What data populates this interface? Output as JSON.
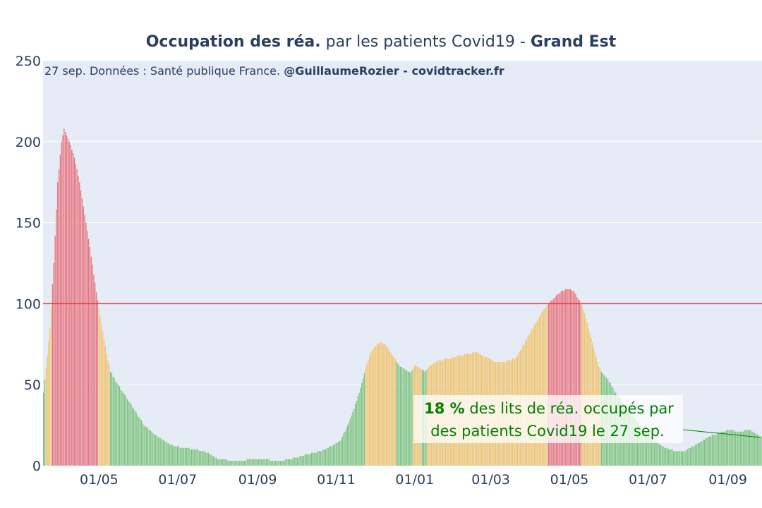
{
  "chart_data": {
    "type": "bar",
    "title": {
      "part1": "Occupation des réa.",
      "part2": " par les patients Covid19 - ",
      "part3": "Grand Est"
    },
    "source_note": {
      "plain": "27 sep. Données : Santé publique France. ",
      "bold": "@GuillaumeRozier - covidtracker.fr"
    },
    "annotation": {
      "value_text": "18  %",
      "line1_rest": " des lits de réa. occupés par",
      "line2": "des patients Covid19 le 27 sep."
    },
    "x_tick_labels": [
      "01/05",
      "01/07",
      "01/09",
      "01/11",
      "01/01",
      "01/03",
      "01/05",
      "01/07",
      "01/09"
    ],
    "y_tick_labels": [
      "0",
      "50",
      "100",
      "150",
      "200",
      "250"
    ],
    "ylim": [
      0,
      250
    ],
    "threshold": 100,
    "color_rules": [
      {
        "min": 100,
        "color": "#e8737d",
        "meaning": ">= 100%"
      },
      {
        "min": 60,
        "color": "#f2c46d",
        "meaning": "60-100%"
      },
      {
        "min": 0,
        "color": "#7dc47d",
        "meaning": "< 60%"
      }
    ],
    "color_overrides": {
      "yellow": [
        [
          267,
          273
        ]
      ],
      "green": [
        [
          274,
          281
        ]
      ]
    },
    "threshold_color": "#e8343c",
    "plot_bg": "#e5ecf6",
    "grid_color": "#ffffff",
    "annotation_color": "#008000",
    "start_date": "2020-03-19",
    "end_date": "2021-09-27",
    "keypoints": [
      [
        "2020-03-19",
        45
      ],
      [
        "2020-03-21",
        60
      ],
      [
        "2020-03-24",
        85
      ],
      [
        "2020-03-27",
        125
      ],
      [
        "2020-03-30",
        175
      ],
      [
        "2020-04-02",
        200
      ],
      [
        "2020-04-04",
        208
      ],
      [
        "2020-04-08",
        200
      ],
      [
        "2020-04-12",
        190
      ],
      [
        "2020-04-16",
        175
      ],
      [
        "2020-04-20",
        155
      ],
      [
        "2020-04-24",
        135
      ],
      [
        "2020-04-27",
        118
      ],
      [
        "2020-04-30",
        102
      ],
      [
        "2020-05-02",
        92
      ],
      [
        "2020-05-05",
        78
      ],
      [
        "2020-05-08",
        65
      ],
      [
        "2020-05-10",
        58
      ],
      [
        "2020-05-14",
        52
      ],
      [
        "2020-05-20",
        45
      ],
      [
        "2020-05-28",
        35
      ],
      [
        "2020-06-05",
        25
      ],
      [
        "2020-06-15",
        18
      ],
      [
        "2020-06-25",
        13
      ],
      [
        "2020-07-05",
        11
      ],
      [
        "2020-07-15",
        10
      ],
      [
        "2020-07-25",
        8
      ],
      [
        "2020-08-01",
        4
      ],
      [
        "2020-08-15",
        3
      ],
      [
        "2020-09-01",
        4
      ],
      [
        "2020-09-20",
        3
      ],
      [
        "2020-10-01",
        5
      ],
      [
        "2020-10-10",
        7
      ],
      [
        "2020-10-20",
        9
      ],
      [
        "2020-10-31",
        13
      ],
      [
        "2020-11-05",
        16
      ],
      [
        "2020-11-10",
        25
      ],
      [
        "2020-11-15",
        35
      ],
      [
        "2020-11-20",
        48
      ],
      [
        "2020-11-24",
        60
      ],
      [
        "2020-11-28",
        70
      ],
      [
        "2020-12-02",
        74
      ],
      [
        "2020-12-06",
        76
      ],
      [
        "2020-12-10",
        74
      ],
      [
        "2020-12-15",
        68
      ],
      [
        "2020-12-20",
        62
      ],
      [
        "2020-12-25",
        59
      ],
      [
        "2020-12-29",
        57
      ],
      [
        "2021-01-01",
        62
      ],
      [
        "2021-01-05",
        60
      ],
      [
        "2021-01-09",
        58
      ],
      [
        "2021-01-13",
        62
      ],
      [
        "2021-01-20",
        65
      ],
      [
        "2021-01-28",
        66
      ],
      [
        "2021-02-05",
        68
      ],
      [
        "2021-02-12",
        69
      ],
      [
        "2021-02-18",
        70
      ],
      [
        "2021-02-25",
        67
      ],
      [
        "2021-03-05",
        64
      ],
      [
        "2021-03-12",
        64
      ],
      [
        "2021-03-20",
        66
      ],
      [
        "2021-03-25",
        72
      ],
      [
        "2021-03-30",
        80
      ],
      [
        "2021-04-05",
        88
      ],
      [
        "2021-04-10",
        95
      ],
      [
        "2021-04-15",
        100
      ],
      [
        "2021-04-20",
        104
      ],
      [
        "2021-04-25",
        108
      ],
      [
        "2021-05-01",
        109
      ],
      [
        "2021-05-05",
        107
      ],
      [
        "2021-05-08",
        103
      ],
      [
        "2021-05-10",
        100
      ],
      [
        "2021-05-13",
        94
      ],
      [
        "2021-05-17",
        82
      ],
      [
        "2021-05-21",
        70
      ],
      [
        "2021-05-24",
        61
      ],
      [
        "2021-05-27",
        57
      ],
      [
        "2021-06-01",
        52
      ],
      [
        "2021-06-06",
        45
      ],
      [
        "2021-06-12",
        38
      ],
      [
        "2021-06-20",
        30
      ],
      [
        "2021-06-28",
        22
      ],
      [
        "2021-07-06",
        15
      ],
      [
        "2021-07-14",
        11
      ],
      [
        "2021-07-22",
        9
      ],
      [
        "2021-07-30",
        9
      ],
      [
        "2021-08-05",
        12
      ],
      [
        "2021-08-12",
        15
      ],
      [
        "2021-08-18",
        18
      ],
      [
        "2021-08-25",
        20
      ],
      [
        "2021-09-02",
        22
      ],
      [
        "2021-09-10",
        21
      ],
      [
        "2021-09-18",
        22
      ],
      [
        "2021-09-27",
        18
      ]
    ]
  }
}
